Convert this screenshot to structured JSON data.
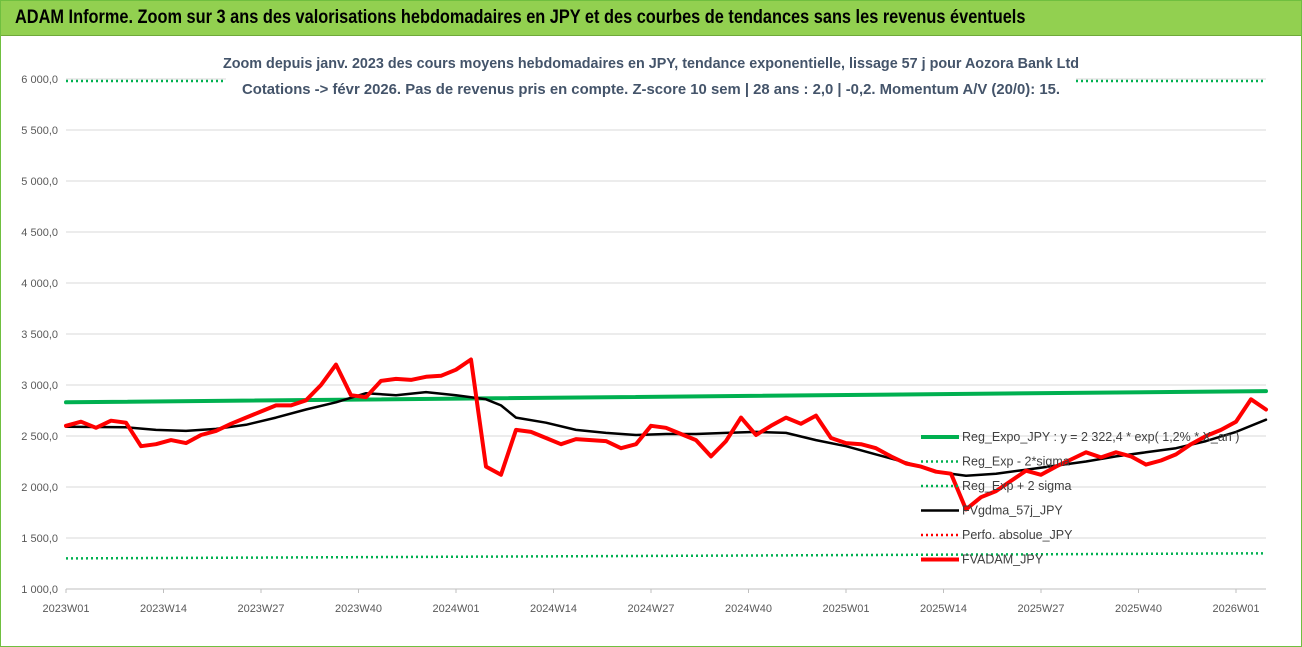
{
  "banner": {
    "title": "ADAM Informe. Zoom sur 3 ans des valorisations hebdomadaires en JPY et des courbes de tendances sans les revenus éventuels"
  },
  "colors": {
    "banner_bg": "#92d050",
    "reg_expo": "#00b050",
    "sigma": "#00b050",
    "fvgdma": "#000000",
    "perfo": "#ff0000",
    "fvadam": "#ff0000",
    "title": "#44546a"
  },
  "chart_data": {
    "type": "line",
    "title": "Zoom depuis janv. 2023 des cours moyens hebdomadaires en JPY, tendance exponentielle, lissage 57 j pour Aozora Bank Ltd",
    "subtitle": "Cotations -> févr 2026. Pas de revenus pris en compte. Z-score 10 sem | 28 ans : 2,0 | -0,2. Momentum A/V (20/0): 15.",
    "xlabel": "",
    "ylabel": "",
    "ylim": [
      1000,
      6000
    ],
    "y_ticks": [
      "1 000,0",
      "1 500,0",
      "2 000,0",
      "2 500,0",
      "3 000,0",
      "3 500,0",
      "4 000,0",
      "4 500,0",
      "5 000,0",
      "5 500,0",
      "6 000,0"
    ],
    "x_ticks": [
      "2023W01",
      "2023W14",
      "2023W27",
      "2023W40",
      "2024W01",
      "2024W14",
      "2024W27",
      "2024W40",
      "2025W01",
      "2025W14",
      "2025W27",
      "2025W40",
      "2026W01"
    ],
    "grid": "horizontal",
    "legend_position": "right",
    "series": [
      {
        "name": "Reg_Expo_JPY : y = 2 322,4 * exp( 1,2% * X_an )",
        "style": "solid-thick",
        "color": "#00b050",
        "points": [
          [
            0,
            2830
          ],
          [
            160,
            2940
          ]
        ]
      },
      {
        "name": "Reg_Exp - 2*sigma",
        "style": "dotted",
        "color": "#00b050",
        "points": [
          [
            0,
            1300
          ],
          [
            160,
            1350
          ]
        ]
      },
      {
        "name": "Reg_Exp + 2 sigma",
        "style": "dotted",
        "color": "#00b050",
        "points": [
          [
            0,
            5980
          ],
          [
            160,
            5980
          ]
        ]
      },
      {
        "name": "FVgdma_57j_JPY",
        "style": "solid",
        "color": "#000000",
        "points": [
          [
            0,
            2590
          ],
          [
            8,
            2585
          ],
          [
            12,
            2560
          ],
          [
            16,
            2550
          ],
          [
            20,
            2570
          ],
          [
            24,
            2610
          ],
          [
            28,
            2680
          ],
          [
            32,
            2760
          ],
          [
            36,
            2830
          ],
          [
            40,
            2920
          ],
          [
            44,
            2900
          ],
          [
            48,
            2930
          ],
          [
            52,
            2900
          ],
          [
            56,
            2860
          ],
          [
            58,
            2800
          ],
          [
            60,
            2680
          ],
          [
            64,
            2630
          ],
          [
            68,
            2560
          ],
          [
            72,
            2530
          ],
          [
            76,
            2510
          ],
          [
            80,
            2520
          ],
          [
            84,
            2520
          ],
          [
            88,
            2530
          ],
          [
            92,
            2540
          ],
          [
            96,
            2530
          ],
          [
            100,
            2460
          ],
          [
            104,
            2400
          ],
          [
            108,
            2320
          ],
          [
            112,
            2240
          ],
          [
            116,
            2150
          ],
          [
            120,
            2110
          ],
          [
            124,
            2130
          ],
          [
            128,
            2170
          ],
          [
            132,
            2210
          ],
          [
            136,
            2250
          ],
          [
            140,
            2300
          ],
          [
            144,
            2340
          ],
          [
            148,
            2380
          ],
          [
            152,
            2450
          ],
          [
            156,
            2540
          ],
          [
            160,
            2660
          ]
        ]
      },
      {
        "name": "Perfo. absolue_JPY",
        "style": "dotted",
        "color": "#ff0000",
        "points": []
      },
      {
        "name": "FVADAM_JPY",
        "style": "solid-thick",
        "color": "#ff0000",
        "points": [
          [
            0,
            2600
          ],
          [
            2,
            2640
          ],
          [
            4,
            2580
          ],
          [
            6,
            2650
          ],
          [
            8,
            2630
          ],
          [
            10,
            2400
          ],
          [
            12,
            2420
          ],
          [
            14,
            2460
          ],
          [
            16,
            2430
          ],
          [
            18,
            2510
          ],
          [
            20,
            2550
          ],
          [
            22,
            2620
          ],
          [
            24,
            2680
          ],
          [
            26,
            2740
          ],
          [
            28,
            2800
          ],
          [
            30,
            2800
          ],
          [
            32,
            2850
          ],
          [
            34,
            3000
          ],
          [
            36,
            3200
          ],
          [
            38,
            2900
          ],
          [
            40,
            2880
          ],
          [
            42,
            3040
          ],
          [
            44,
            3060
          ],
          [
            46,
            3050
          ],
          [
            48,
            3080
          ],
          [
            50,
            3090
          ],
          [
            52,
            3150
          ],
          [
            54,
            3250
          ],
          [
            56,
            2200
          ],
          [
            58,
            2120
          ],
          [
            60,
            2560
          ],
          [
            62,
            2540
          ],
          [
            64,
            2480
          ],
          [
            66,
            2420
          ],
          [
            68,
            2470
          ],
          [
            70,
            2460
          ],
          [
            72,
            2450
          ],
          [
            74,
            2380
          ],
          [
            76,
            2420
          ],
          [
            78,
            2600
          ],
          [
            80,
            2580
          ],
          [
            82,
            2520
          ],
          [
            84,
            2460
          ],
          [
            86,
            2300
          ],
          [
            88,
            2450
          ],
          [
            90,
            2680
          ],
          [
            92,
            2510
          ],
          [
            94,
            2600
          ],
          [
            96,
            2680
          ],
          [
            98,
            2620
          ],
          [
            100,
            2700
          ],
          [
            102,
            2480
          ],
          [
            104,
            2430
          ],
          [
            106,
            2420
          ],
          [
            108,
            2380
          ],
          [
            110,
            2300
          ],
          [
            112,
            2230
          ],
          [
            114,
            2200
          ],
          [
            116,
            2150
          ],
          [
            118,
            2130
          ],
          [
            120,
            1780
          ],
          [
            122,
            1900
          ],
          [
            124,
            1960
          ],
          [
            126,
            2060
          ],
          [
            128,
            2160
          ],
          [
            130,
            2120
          ],
          [
            132,
            2200
          ],
          [
            134,
            2270
          ],
          [
            136,
            2340
          ],
          [
            138,
            2290
          ],
          [
            140,
            2340
          ],
          [
            142,
            2300
          ],
          [
            144,
            2220
          ],
          [
            146,
            2260
          ],
          [
            148,
            2320
          ],
          [
            150,
            2420
          ],
          [
            152,
            2500
          ],
          [
            154,
            2560
          ],
          [
            156,
            2640
          ],
          [
            158,
            2860
          ],
          [
            160,
            2760
          ]
        ]
      }
    ]
  }
}
